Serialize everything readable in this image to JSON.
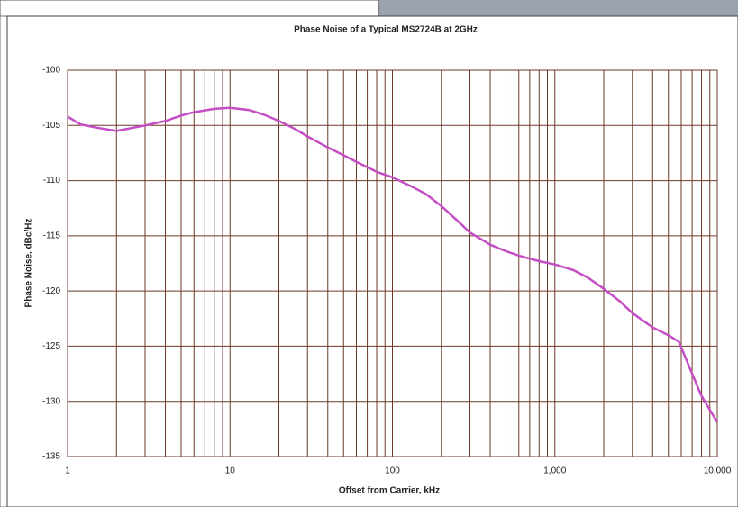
{
  "chart_data": {
    "type": "line",
    "title": "Phase Noise of a Typical MS2724B at 2GHz",
    "x_label": "Offset from Carrier, kHz",
    "y_label": "Phase Noise, dBc/Hz",
    "x_scale": "log",
    "grid": true,
    "xlim": [
      1,
      10000
    ],
    "xticks": [
      1,
      10,
      100,
      {
        "value": 1000,
        "label": "1,000"
      },
      {
        "value": 10000,
        "label": "10,000"
      }
    ],
    "ylim": [
      -135,
      -100
    ],
    "yticks": [
      -135,
      -130,
      -125,
      -120,
      -115,
      -110,
      -105,
      -100
    ],
    "x": [
      1,
      1.2,
      1.5,
      2,
      3,
      4,
      5,
      6,
      8,
      10,
      13,
      16,
      20,
      25,
      30,
      40,
      50,
      60,
      80,
      100,
      130,
      160,
      200,
      250,
      300,
      400,
      500,
      600,
      800,
      1000,
      1300,
      1600,
      2000,
      2500,
      3000,
      4000,
      5000,
      5800,
      7000,
      8000,
      10000
    ],
    "series": [
      {
        "color": "#c44ec4",
        "values": [
          -104.2,
          -104.9,
          -105.2,
          -105.5,
          -105.0,
          -104.6,
          -104.1,
          -103.8,
          -103.5,
          -103.4,
          -103.6,
          -104.0,
          -104.6,
          -105.3,
          -106.0,
          -107.0,
          -107.7,
          -108.3,
          -109.2,
          -109.7,
          -110.5,
          -111.2,
          -112.3,
          -113.6,
          -114.7,
          -115.8,
          -116.4,
          -116.8,
          -117.3,
          -117.6,
          -118.1,
          -118.8,
          -119.8,
          -120.9,
          -122.0,
          -123.3,
          -124.0,
          -124.6,
          -127.5,
          -129.5,
          -131.9
        ]
      }
    ]
  }
}
